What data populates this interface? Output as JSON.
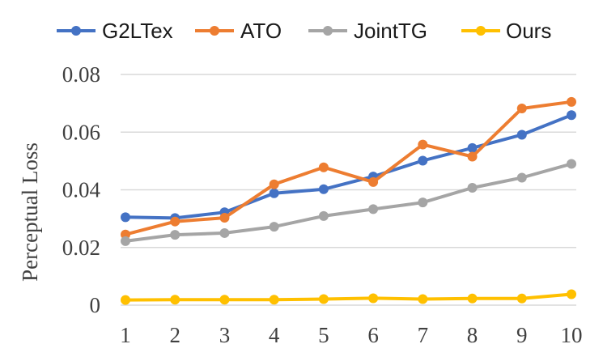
{
  "chart_data": {
    "type": "line",
    "title": "",
    "xlabel": "",
    "ylabel": "Perceptual Loss",
    "x": [
      1,
      2,
      3,
      4,
      5,
      6,
      7,
      8,
      9,
      10
    ],
    "ylim": [
      0,
      0.08
    ],
    "yticks": [
      0,
      0.02,
      0.04,
      0.06,
      0.08
    ],
    "ytick_labels": [
      "0",
      "0.02",
      "0.04",
      "0.06",
      "0.08"
    ],
    "grid": "horizontal",
    "legend_position": "top",
    "series": [
      {
        "name": "G2LTex",
        "color": "#4472c4",
        "values": [
          0.0305,
          0.0302,
          0.0322,
          0.0388,
          0.0402,
          0.0446,
          0.0501,
          0.0545,
          0.0591,
          0.0659
        ]
      },
      {
        "name": "ATO",
        "color": "#ed7d31",
        "values": [
          0.0245,
          0.029,
          0.0303,
          0.0419,
          0.0478,
          0.0427,
          0.0557,
          0.0515,
          0.0682,
          0.0705
        ]
      },
      {
        "name": "JointTG",
        "color": "#a5a5a5",
        "values": [
          0.0222,
          0.0244,
          0.025,
          0.0272,
          0.0309,
          0.0333,
          0.0356,
          0.0407,
          0.0442,
          0.049
        ]
      },
      {
        "name": "Ours",
        "color": "#ffc000",
        "values": [
          0.0018,
          0.0019,
          0.0019,
          0.0019,
          0.0021,
          0.0024,
          0.0021,
          0.0023,
          0.0023,
          0.0038
        ]
      }
    ]
  }
}
